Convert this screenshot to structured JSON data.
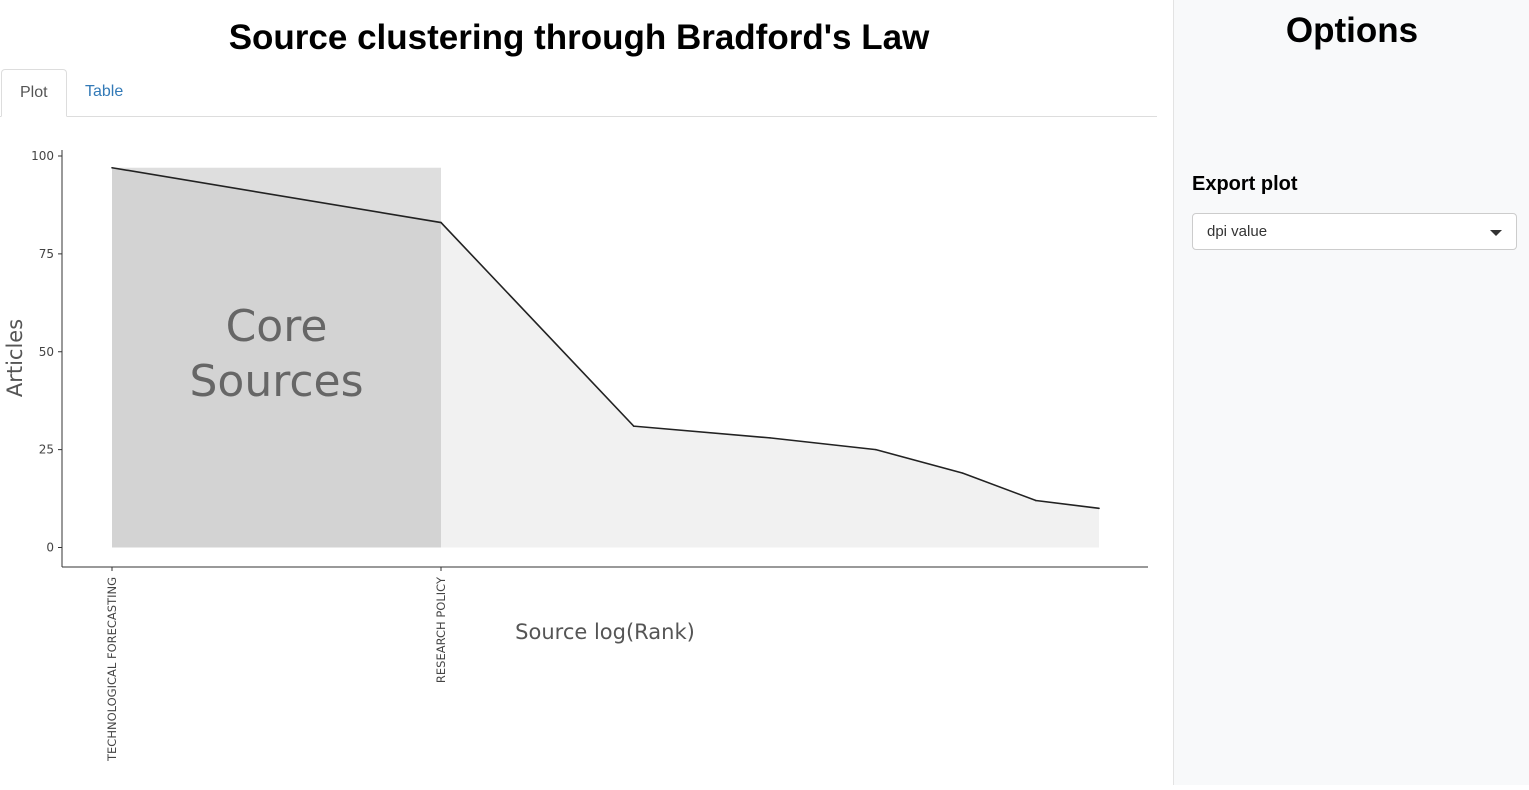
{
  "page": {
    "title": "Source clustering through Bradford's Law"
  },
  "tabs": [
    {
      "label": "Plot",
      "active": true
    },
    {
      "label": "Table",
      "active": false
    }
  ],
  "sidebar": {
    "title": "Options",
    "export_label": "Export plot",
    "dpi_select": {
      "value": "dpi value"
    }
  },
  "chart_data": {
    "type": "area",
    "title": "",
    "xlabel": "Source log(Rank)",
    "ylabel": "Articles",
    "ylim": [
      0,
      100
    ],
    "yticks": [
      0,
      25,
      50,
      75,
      100
    ],
    "x_log_rank": [
      0,
      0.693,
      1.099,
      1.386,
      1.609,
      1.792,
      1.946,
      2.079
    ],
    "values": [
      97,
      83,
      31,
      28,
      25,
      19,
      12,
      10
    ],
    "x_tick_labels": [
      {
        "x_log_rank": 0,
        "label": "TECHNOLOGICAL FORECASTING"
      },
      {
        "x_log_rank": 0.693,
        "label": "RESEARCH POLICY"
      }
    ],
    "core_zone": {
      "x_log_rank_start": 0,
      "x_log_rank_end": 0.693,
      "label_line1": "Core",
      "label_line2": "Sources"
    },
    "colors": {
      "line": "#222222",
      "area": "#f1f1f1",
      "core_light": "#dedede",
      "core_dark": "#d3d3d3",
      "core_text": "#666666",
      "axis_text": "#444444"
    },
    "grid": false
  }
}
